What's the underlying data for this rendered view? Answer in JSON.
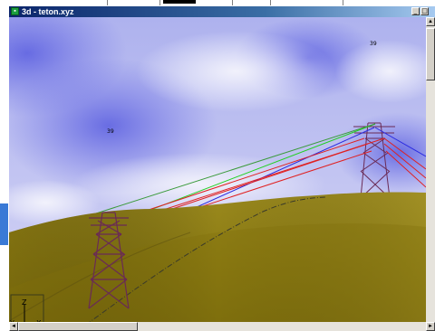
{
  "window": {
    "title": "3d - teton.xyz",
    "app_icon": "3d-view-icon",
    "minimize_label": "_",
    "maximize_label": "□"
  },
  "scene": {
    "labels": [
      {
        "text": "39"
      },
      {
        "text": "39"
      }
    ],
    "axes": {
      "z": "Z",
      "y": "Y",
      "x": "X"
    },
    "colors": {
      "sky": "#9aa2ea",
      "terrain": "#8f7f15",
      "tower": "#6a2a55",
      "conductor_red": "#e02020",
      "ground_wire_blue": "#2020e0",
      "ground_wire_green": "#20d020"
    }
  },
  "scrollbars": {
    "up_arrow": "▲",
    "down_arrow": "▼",
    "left_arrow": "◄",
    "right_arrow": "►"
  }
}
